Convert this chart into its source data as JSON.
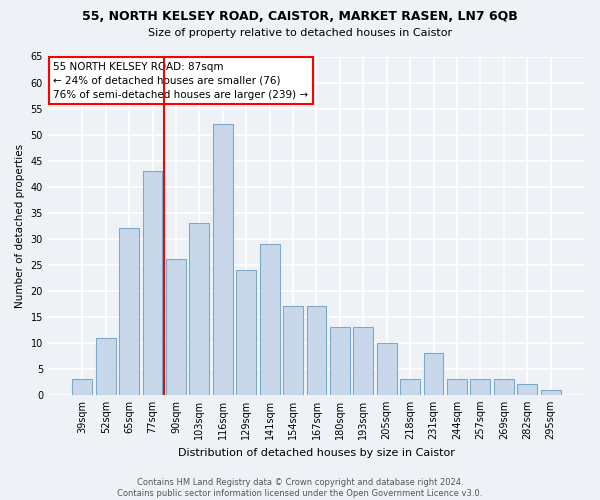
{
  "title_line1": "55, NORTH KELSEY ROAD, CAISTOR, MARKET RASEN, LN7 6QB",
  "title_line2": "Size of property relative to detached houses in Caistor",
  "xlabel": "Distribution of detached houses by size in Caistor",
  "ylabel": "Number of detached properties",
  "categories": [
    "39sqm",
    "52sqm",
    "65sqm",
    "77sqm",
    "90sqm",
    "103sqm",
    "116sqm",
    "129sqm",
    "141sqm",
    "154sqm",
    "167sqm",
    "180sqm",
    "193sqm",
    "205sqm",
    "218sqm",
    "231sqm",
    "244sqm",
    "257sqm",
    "269sqm",
    "282sqm",
    "295sqm"
  ],
  "values": [
    3,
    11,
    32,
    43,
    26,
    33,
    52,
    24,
    29,
    17,
    17,
    13,
    13,
    10,
    3,
    8,
    3,
    3,
    3,
    2,
    1
  ],
  "bar_color": "#c8d8ea",
  "bar_edge_color": "#7aaac8",
  "vline_color": "red",
  "annotation_text": "55 NORTH KELSEY ROAD: 87sqm\n← 24% of detached houses are smaller (76)\n76% of semi-detached houses are larger (239) →",
  "annotation_box_color": "white",
  "annotation_box_edge_color": "red",
  "ylim": [
    0,
    65
  ],
  "yticks": [
    0,
    5,
    10,
    15,
    20,
    25,
    30,
    35,
    40,
    45,
    50,
    55,
    60,
    65
  ],
  "background_color": "#eef2f7",
  "grid_color": "white",
  "footer_text": "Contains HM Land Registry data © Crown copyright and database right 2024.\nContains public sector information licensed under the Open Government Licence v3.0."
}
